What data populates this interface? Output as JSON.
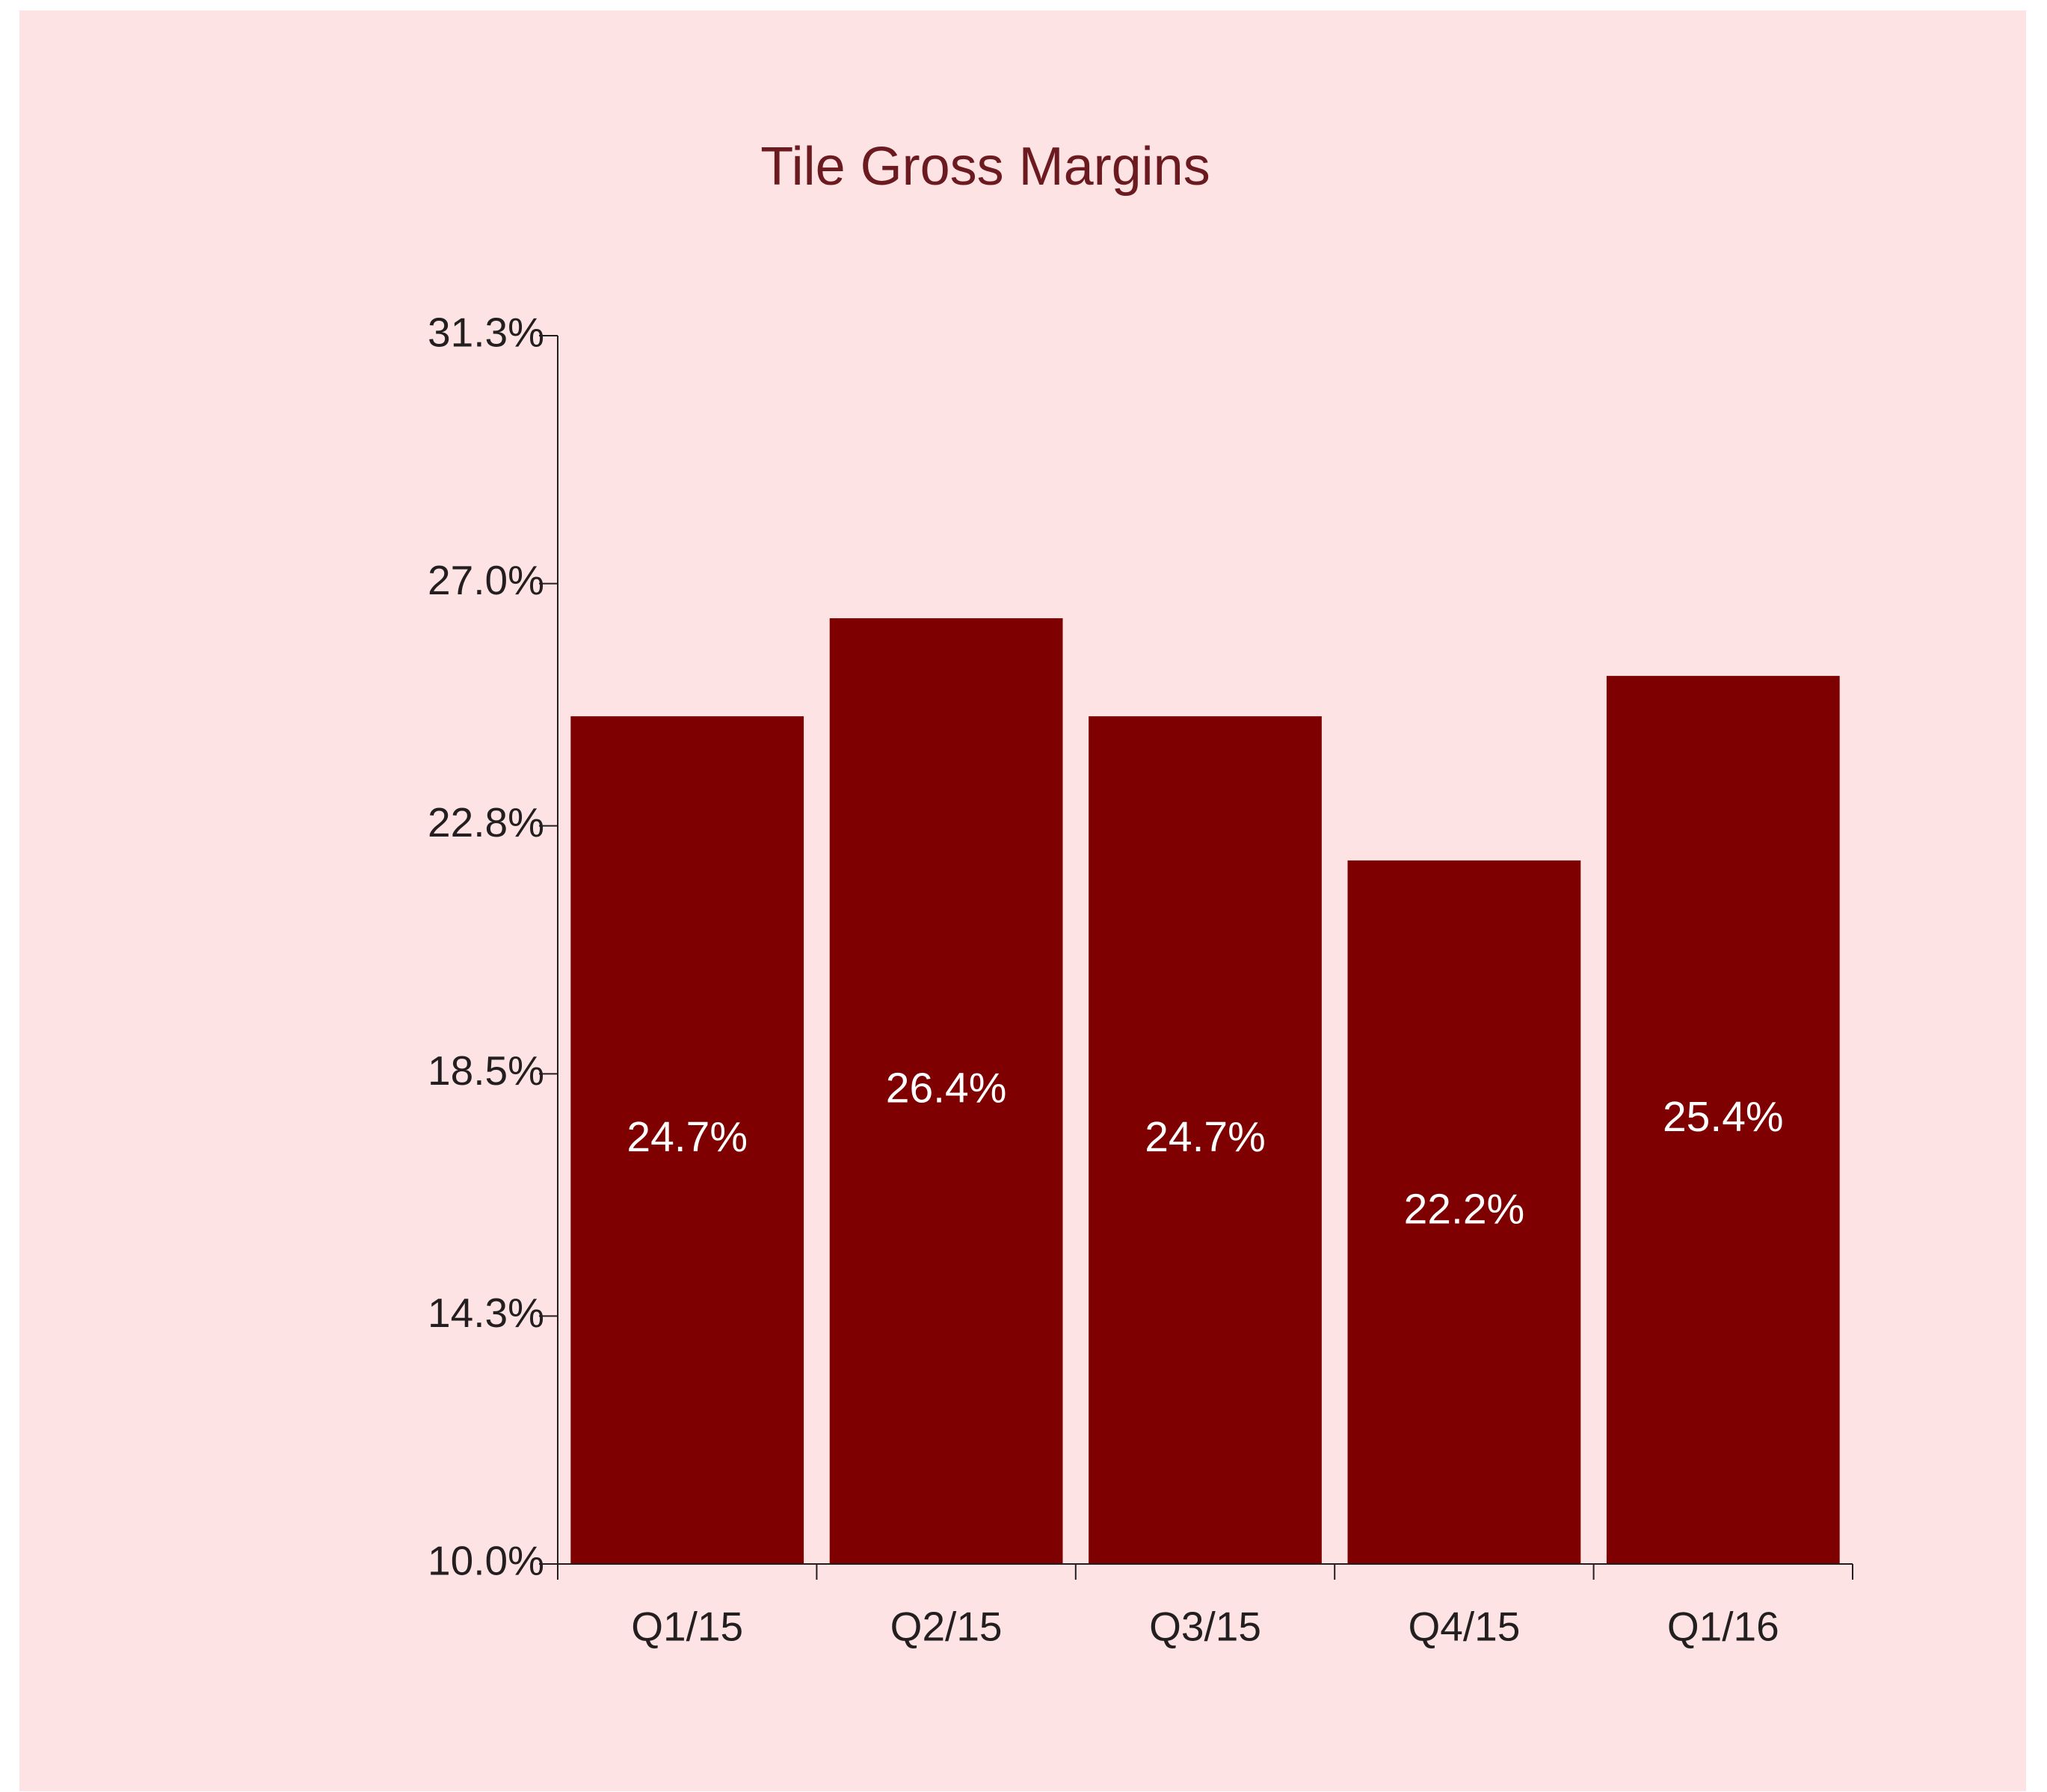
{
  "chart_data": {
    "type": "bar",
    "title": "Tile Gross Margins",
    "categories": [
      "Q1/15",
      "Q2/15",
      "Q3/15",
      "Q4/15",
      "Q1/16"
    ],
    "values": [
      24.7,
      26.4,
      24.7,
      22.2,
      25.4
    ],
    "value_labels": [
      "24.7%",
      "26.4%",
      "24.7%",
      "22.2%",
      "25.4%"
    ],
    "color": "#7f0000",
    "ylim": [
      10.0,
      31.3
    ],
    "yticks": [
      {
        "value": 10.0,
        "label": "10.0%"
      },
      {
        "value": 14.3,
        "label": "14.3%"
      },
      {
        "value": 18.5,
        "label": "18.5%"
      },
      {
        "value": 22.8,
        "label": "22.8%"
      },
      {
        "value": 27.0,
        "label": "27.0%"
      },
      {
        "value": 31.3,
        "label": "31.3%"
      }
    ],
    "grid": false
  }
}
